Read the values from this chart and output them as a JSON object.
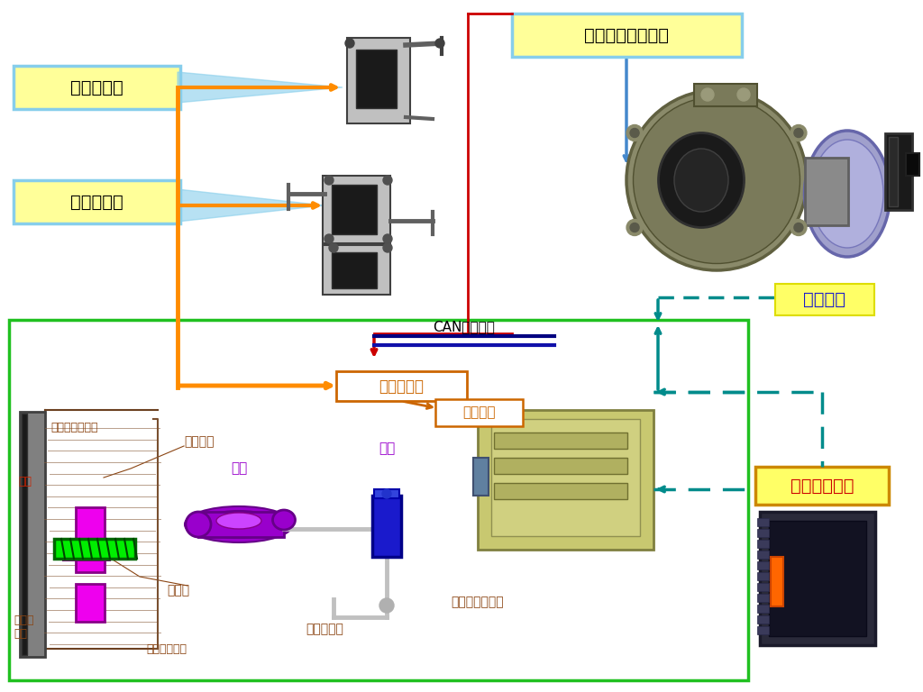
{
  "bg_color": "#ffffff",
  "labels": {
    "xuandang": "选挡传感器",
    "huandang": "换挡传感器",
    "lihequi_pos": "离合器位置传感器",
    "chuanzhen_signal": "传感器信号",
    "diankong": "电控单元",
    "can_bus": "CAN总线网络",
    "caozong": "操纵机构",
    "lihequi_ctrl": "离合器控制器",
    "feiyun": "飞轮",
    "fen_li_zhouchen": "分离轴承",
    "gai_ya": "盖及压盘总成：",
    "fen_xi": "分系",
    "zong_xi": "总泵",
    "fen_li": "分离叉",
    "biansuguan_ru": "变速器的入轴",
    "congdong": "从动盘\n总成",
    "lihequi_guanlu": "离合器管路",
    "lihequi_caozong": "离合器操纵机构"
  }
}
